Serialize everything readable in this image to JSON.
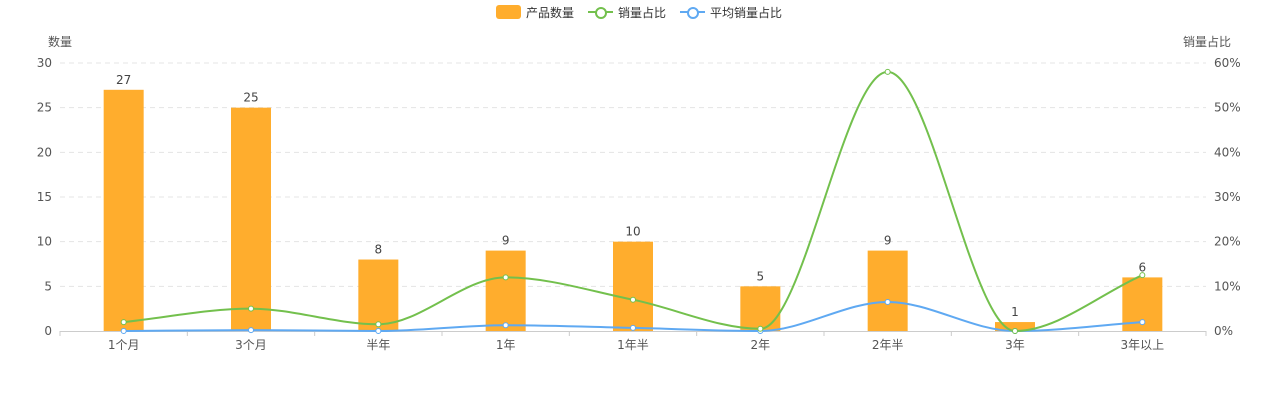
{
  "chart_data": {
    "type": "bar",
    "categories": [
      "1个月",
      "3个月",
      "半年",
      "1年",
      "1年半",
      "2年",
      "2年半",
      "3年",
      "3年以上"
    ],
    "y_left": {
      "label": "数量",
      "min": 0,
      "max": 30,
      "ticks": [
        "0",
        "5",
        "10",
        "15",
        "20",
        "25",
        "30"
      ]
    },
    "y_right": {
      "label": "销量占比",
      "min": 0,
      "max": 60,
      "ticks": [
        "0%",
        "10%",
        "20%",
        "30%",
        "40%",
        "50%",
        "60%"
      ]
    },
    "grid": true,
    "legend_position": "top-center",
    "series": [
      {
        "name": "产品数量",
        "type": "bar",
        "axis": "left",
        "color": "#ffad2d",
        "values": [
          27,
          25,
          8,
          9,
          10,
          5,
          9,
          1,
          6
        ]
      },
      {
        "name": "销量占比",
        "type": "line",
        "axis": "right",
        "color": "#73c04d",
        "values": [
          2,
          5,
          1.5,
          12,
          7,
          0.5,
          58,
          0,
          12.5
        ]
      },
      {
        "name": "平均销量占比",
        "type": "line",
        "axis": "right",
        "color": "#5fa9f2",
        "values": [
          0,
          0.2,
          0,
          1.3,
          0.7,
          0,
          6.5,
          0,
          2
        ]
      }
    ]
  }
}
